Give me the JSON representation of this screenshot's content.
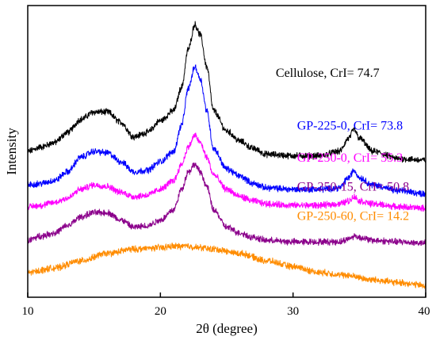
{
  "chart_data": {
    "type": "line",
    "title": "",
    "xlabel": "2θ (degree)",
    "ylabel": "Intensity",
    "xlim": [
      10,
      40
    ],
    "x_ticks": [
      10,
      20,
      30,
      40
    ],
    "y_ticks_shown": false,
    "grid": false,
    "legend": "inline labels at right of each curve",
    "series": [
      {
        "name": "Cellulose, CrI= 74.7",
        "color": "#000000",
        "label_anchor": {
          "x": 28.7,
          "y": 0.755
        },
        "points": [
          [
            10,
            0.5
          ],
          [
            11,
            0.515
          ],
          [
            12,
            0.53
          ],
          [
            13,
            0.565
          ],
          [
            14,
            0.61
          ],
          [
            15,
            0.635
          ],
          [
            16,
            0.635
          ],
          [
            17,
            0.6
          ],
          [
            18,
            0.55
          ],
          [
            19,
            0.565
          ],
          [
            20,
            0.605
          ],
          [
            21,
            0.64
          ],
          [
            21.6,
            0.72
          ],
          [
            22.1,
            0.85
          ],
          [
            22.6,
            0.935
          ],
          [
            23,
            0.9
          ],
          [
            23.5,
            0.79
          ],
          [
            24,
            0.64
          ],
          [
            25,
            0.57
          ],
          [
            26,
            0.535
          ],
          [
            27,
            0.51
          ],
          [
            28,
            0.49
          ],
          [
            30,
            0.485
          ],
          [
            32,
            0.485
          ],
          [
            33.5,
            0.5
          ],
          [
            34.2,
            0.545
          ],
          [
            34.6,
            0.575
          ],
          [
            35,
            0.545
          ],
          [
            36,
            0.5
          ],
          [
            38,
            0.475
          ],
          [
            40,
            0.47
          ]
        ]
      },
      {
        "name": "GP-225-0, CrI= 73.8",
        "color": "#0000ff",
        "label_anchor": {
          "x": 30.3,
          "y": 0.575
        },
        "points": [
          [
            10,
            0.385
          ],
          [
            11,
            0.39
          ],
          [
            12,
            0.4
          ],
          [
            13,
            0.43
          ],
          [
            14,
            0.48
          ],
          [
            15,
            0.5
          ],
          [
            16,
            0.495
          ],
          [
            17,
            0.465
          ],
          [
            18,
            0.43
          ],
          [
            19,
            0.435
          ],
          [
            20,
            0.465
          ],
          [
            21,
            0.5
          ],
          [
            21.6,
            0.59
          ],
          [
            22.1,
            0.715
          ],
          [
            22.6,
            0.79
          ],
          [
            23,
            0.75
          ],
          [
            23.5,
            0.64
          ],
          [
            24,
            0.51
          ],
          [
            25,
            0.44
          ],
          [
            26,
            0.415
          ],
          [
            27,
            0.39
          ],
          [
            28,
            0.375
          ],
          [
            30,
            0.37
          ],
          [
            32,
            0.37
          ],
          [
            33.5,
            0.375
          ],
          [
            34.2,
            0.41
          ],
          [
            34.6,
            0.435
          ],
          [
            35,
            0.41
          ],
          [
            36,
            0.385
          ],
          [
            38,
            0.365
          ],
          [
            40,
            0.355
          ]
        ]
      },
      {
        "name": "GP-250-0, CrI= 55.3",
        "color": "#ff00ff",
        "label_anchor": {
          "x": 30.3,
          "y": 0.465
        },
        "points": [
          [
            10,
            0.31
          ],
          [
            11,
            0.315
          ],
          [
            12,
            0.325
          ],
          [
            13,
            0.34
          ],
          [
            14,
            0.37
          ],
          [
            15,
            0.385
          ],
          [
            16,
            0.38
          ],
          [
            17,
            0.36
          ],
          [
            18,
            0.345
          ],
          [
            19,
            0.35
          ],
          [
            20,
            0.37
          ],
          [
            21,
            0.4
          ],
          [
            21.6,
            0.455
          ],
          [
            22.1,
            0.515
          ],
          [
            22.6,
            0.555
          ],
          [
            23,
            0.53
          ],
          [
            23.5,
            0.48
          ],
          [
            24,
            0.42
          ],
          [
            25,
            0.37
          ],
          [
            26,
            0.345
          ],
          [
            27,
            0.33
          ],
          [
            28,
            0.32
          ],
          [
            30,
            0.315
          ],
          [
            32,
            0.315
          ],
          [
            33.5,
            0.32
          ],
          [
            34.2,
            0.33
          ],
          [
            34.6,
            0.345
          ],
          [
            35,
            0.33
          ],
          [
            36,
            0.32
          ],
          [
            38,
            0.31
          ],
          [
            40,
            0.305
          ]
        ]
      },
      {
        "name": "GP-250-15, CrI= 50.8",
        "color": "#8b008b",
        "label_anchor": {
          "x": 30.3,
          "y": 0.365
        },
        "points": [
          [
            10,
            0.195
          ],
          [
            11,
            0.21
          ],
          [
            12,
            0.22
          ],
          [
            13,
            0.245
          ],
          [
            14,
            0.275
          ],
          [
            15,
            0.29
          ],
          [
            16,
            0.29
          ],
          [
            17,
            0.265
          ],
          [
            18,
            0.24
          ],
          [
            19,
            0.245
          ],
          [
            20,
            0.265
          ],
          [
            21,
            0.3
          ],
          [
            21.6,
            0.37
          ],
          [
            22.1,
            0.43
          ],
          [
            22.6,
            0.455
          ],
          [
            23,
            0.43
          ],
          [
            23.5,
            0.38
          ],
          [
            24,
            0.3
          ],
          [
            25,
            0.24
          ],
          [
            26,
            0.22
          ],
          [
            27,
            0.205
          ],
          [
            28,
            0.195
          ],
          [
            30,
            0.19
          ],
          [
            32,
            0.19
          ],
          [
            33.5,
            0.19
          ],
          [
            34.2,
            0.2
          ],
          [
            34.6,
            0.21
          ],
          [
            35,
            0.205
          ],
          [
            36,
            0.195
          ],
          [
            38,
            0.19
          ],
          [
            40,
            0.185
          ]
        ]
      },
      {
        "name": "GP-250-60, CrI= 14.2",
        "color": "#ff8c00",
        "label_anchor": {
          "x": 30.3,
          "y": 0.265
        },
        "points": [
          [
            10,
            0.085
          ],
          [
            12,
            0.1
          ],
          [
            14,
            0.125
          ],
          [
            16,
            0.15
          ],
          [
            18,
            0.165
          ],
          [
            20,
            0.17
          ],
          [
            21,
            0.175
          ],
          [
            22,
            0.175
          ],
          [
            23,
            0.17
          ],
          [
            24,
            0.165
          ],
          [
            26,
            0.15
          ],
          [
            28,
            0.125
          ],
          [
            30,
            0.105
          ],
          [
            32,
            0.085
          ],
          [
            34,
            0.075
          ],
          [
            36,
            0.06
          ],
          [
            38,
            0.05
          ],
          [
            40,
            0.04
          ]
        ]
      }
    ]
  }
}
